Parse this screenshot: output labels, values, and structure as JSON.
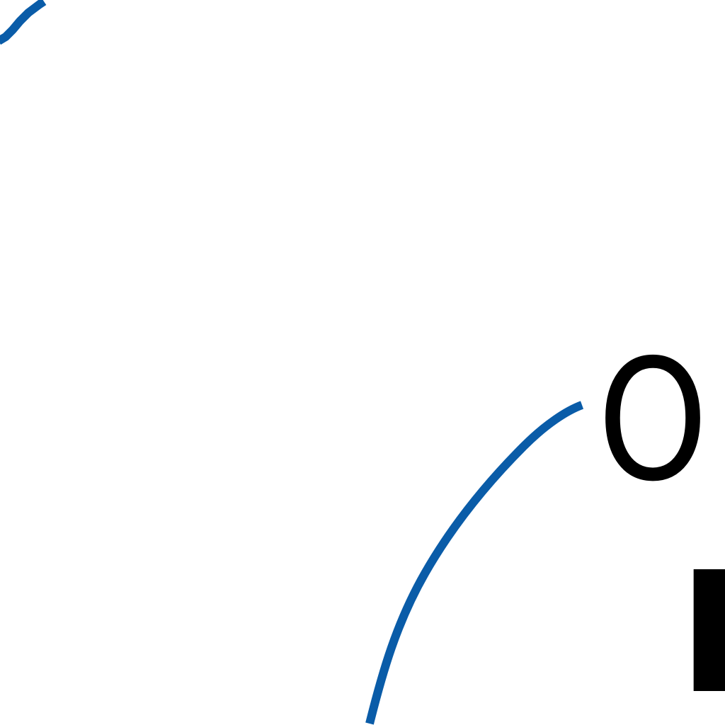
{
  "colors": {
    "background": "#ffffff",
    "curve": "#0a5ca8",
    "text": "#000000"
  },
  "diagram": {
    "labels": {
      "top_letter": "O",
      "bottom_letter": "K"
    }
  }
}
